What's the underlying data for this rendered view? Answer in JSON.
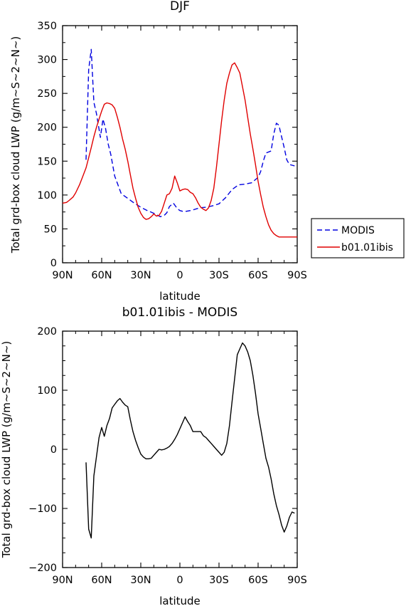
{
  "chart_data": [
    {
      "type": "line",
      "title": "DJF",
      "xlabel": "latitude",
      "ylabel": "Total grd-box cloud LWP (g/m~S~2~N~)",
      "xlim": [
        90,
        -90
      ],
      "ylim": [
        0,
        350
      ],
      "x_ticks": [
        90,
        60,
        30,
        0,
        -30,
        -60,
        -90
      ],
      "x_tick_labels": [
        "90N",
        "60N",
        "30N",
        "0",
        "30S",
        "60S",
        "90S"
      ],
      "y_ticks": [
        0,
        50,
        100,
        150,
        200,
        250,
        300,
        350
      ],
      "y_tick_labels": [
        "0",
        "50",
        "100",
        "150",
        "200",
        "250",
        "300",
        "350"
      ],
      "legend": {
        "placement": "right-outside",
        "entries": [
          "MODIS",
          "b01.01ibis"
        ]
      },
      "grid": false,
      "series": [
        {
          "name": "MODIS",
          "color": "#0000e0",
          "dash": "dashed",
          "x": [
            72,
            70,
            68,
            66,
            64,
            61,
            59,
            57,
            55,
            53,
            50,
            45,
            40,
            35,
            30,
            25,
            20,
            15,
            12,
            10,
            8,
            5,
            2,
            0,
            -2,
            -5,
            -8,
            -10,
            -15,
            -20,
            -25,
            -30,
            -35,
            -40,
            -45,
            -50,
            -55,
            -60,
            -62,
            -64,
            -66,
            -70,
            -72,
            -74,
            -76,
            -77.5,
            -80,
            -82,
            -84,
            -86,
            -88
          ],
          "y": [
            152,
            285,
            315,
            237,
            220,
            185,
            212,
            198,
            175,
            160,
            128,
            102,
            95,
            88,
            82,
            77,
            73,
            68,
            70,
            74,
            83,
            88,
            80,
            77,
            76,
            76,
            77,
            78,
            81,
            82,
            84,
            87,
            96,
            108,
            115,
            116,
            118,
            126,
            135,
            150,
            162,
            165,
            190,
            206,
            203,
            190,
            170,
            152,
            145,
            144,
            143
          ]
        },
        {
          "name": "b01.01ibis",
          "color": "#e00000",
          "dash": "solid",
          "x": [
            90,
            87,
            85,
            82,
            80,
            77,
            75,
            72,
            70,
            68,
            66,
            64,
            62,
            60,
            58,
            56,
            54,
            52,
            50,
            48,
            46,
            44,
            42,
            40,
            38,
            36,
            34,
            32,
            30,
            28,
            26,
            24,
            22,
            20,
            18,
            16,
            14,
            12,
            10,
            8,
            6,
            4,
            2,
            0,
            -2,
            -4,
            -6,
            -8,
            -10,
            -12,
            -14,
            -16,
            -18,
            -20,
            -22,
            -24,
            -26,
            -28,
            -30,
            -32,
            -34,
            -36,
            -38,
            -40,
            -42,
            -44,
            -46,
            -48,
            -50,
            -52,
            -54,
            -56,
            -58,
            -60,
            -62,
            -64,
            -66,
            -68,
            -70,
            -72,
            -74,
            -76,
            -78,
            -80,
            -82,
            -84,
            -86,
            -88,
            -90
          ],
          "y": [
            88,
            89,
            92,
            97,
            103,
            115,
            125,
            140,
            155,
            170,
            186,
            200,
            212,
            224,
            234,
            236,
            235,
            233,
            228,
            215,
            200,
            183,
            168,
            150,
            130,
            110,
            95,
            82,
            73,
            67,
            64,
            65,
            68,
            72,
            69,
            70,
            76,
            88,
            100,
            102,
            110,
            128,
            118,
            106,
            108,
            109,
            108,
            104,
            102,
            96,
            88,
            82,
            79,
            77,
            81,
            92,
            110,
            140,
            175,
            210,
            240,
            265,
            280,
            292,
            295,
            288,
            280,
            260,
            240,
            215,
            190,
            168,
            145,
            120,
            100,
            82,
            68,
            56,
            48,
            43,
            40,
            38,
            38,
            38,
            38,
            38,
            38,
            38,
            38
          ]
        }
      ]
    },
    {
      "type": "line",
      "title": "b01.01ibis - MODIS",
      "xlabel": "latitude",
      "ylabel": "Total grd-box cloud LWP (g/m~S~2~N~)",
      "xlim": [
        90,
        -90
      ],
      "ylim": [
        -200,
        200
      ],
      "x_ticks": [
        90,
        60,
        30,
        0,
        -30,
        -60,
        -90
      ],
      "x_tick_labels": [
        "90N",
        "60N",
        "30N",
        "0",
        "30S",
        "60S",
        "90S"
      ],
      "y_ticks": [
        -200,
        -100,
        0,
        100,
        200
      ],
      "y_tick_labels": [
        "−200",
        "−100",
        "0",
        "100",
        "200"
      ],
      "grid": false,
      "series": [
        {
          "color": "#000000",
          "dash": "solid",
          "x": [
            72,
            70,
            68,
            66,
            62,
            60,
            58,
            56,
            54,
            52,
            50,
            48,
            46,
            44,
            42,
            40,
            38,
            36,
            34,
            32,
            30,
            28,
            26,
            24,
            22,
            20,
            18,
            16,
            14,
            12,
            10,
            8,
            6,
            4,
            2,
            0,
            -2,
            -4,
            -6,
            -8,
            -10,
            -12,
            -14,
            -16,
            -18,
            -20,
            -22,
            -24,
            -26,
            -28,
            -30,
            -32,
            -34,
            -36,
            -38,
            -40,
            -42,
            -44,
            -46,
            -48,
            -50,
            -52,
            -54,
            -56,
            -58,
            -60,
            -62,
            -64,
            -66,
            -68,
            -70,
            -72,
            -74,
            -76,
            -78,
            -80,
            -82,
            -84,
            -86,
            -88
          ],
          "y": [
            -22,
            -135,
            -150,
            -45,
            20,
            37,
            22,
            40,
            52,
            70,
            76,
            82,
            86,
            80,
            75,
            72,
            50,
            30,
            15,
            3,
            -8,
            -13,
            -16,
            -16,
            -15,
            -10,
            -5,
            0,
            -1,
            0,
            2,
            5,
            10,
            17,
            25,
            35,
            45,
            55,
            47,
            40,
            30,
            30,
            30,
            30,
            23,
            20,
            15,
            10,
            5,
            0,
            -5,
            -10,
            -5,
            10,
            40,
            80,
            120,
            160,
            170,
            180,
            175,
            165,
            150,
            125,
            95,
            60,
            35,
            10,
            -15,
            -30,
            -50,
            -75,
            -95,
            -110,
            -128,
            -140,
            -130,
            -115,
            -106,
            -108
          ]
        }
      ]
    }
  ]
}
